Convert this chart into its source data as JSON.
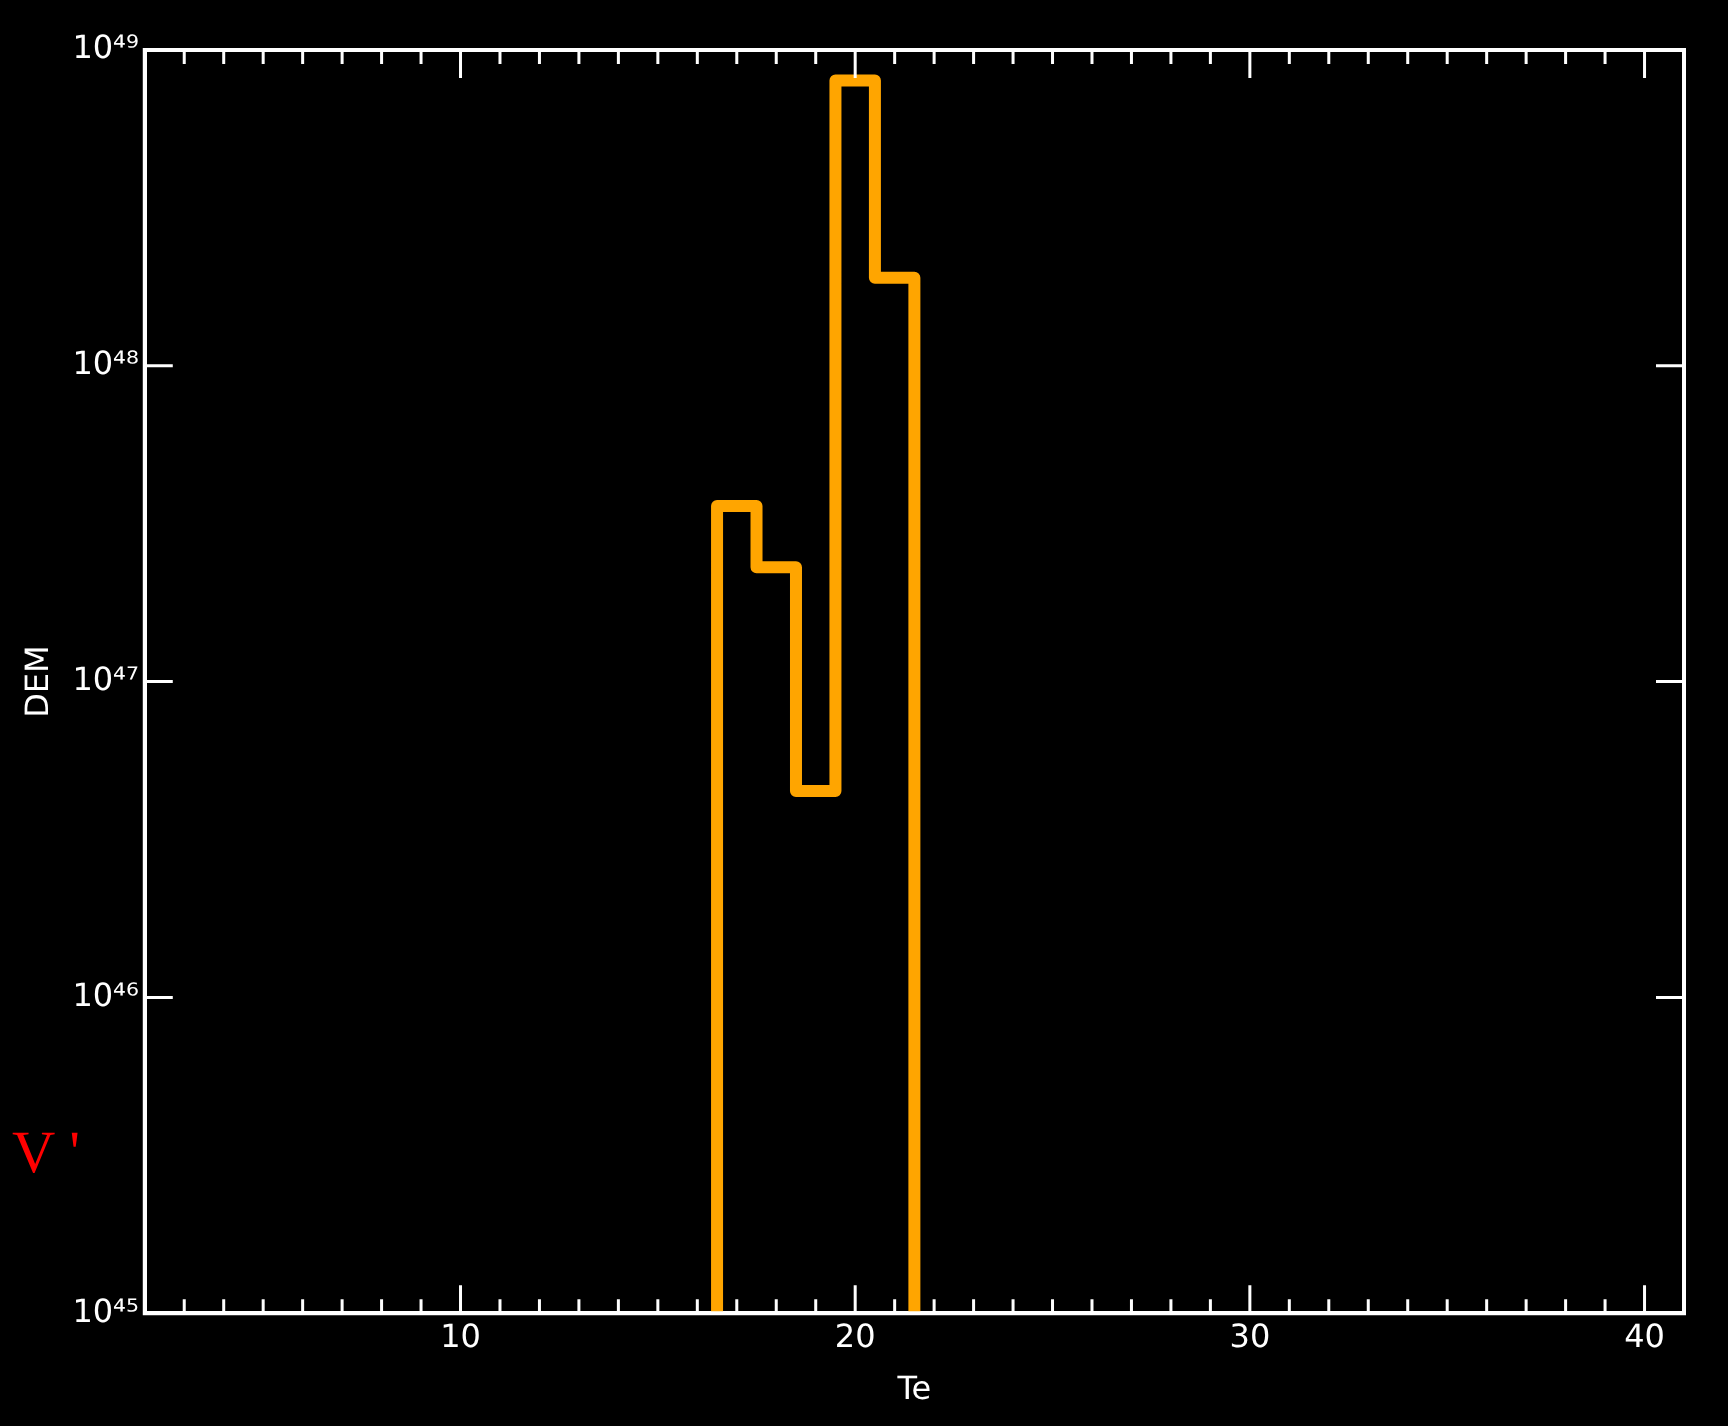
{
  "chart_data": {
    "type": "histogram",
    "xlabel": "Te",
    "ylabel": "DEM",
    "bins": [
      16.5,
      17.5,
      18.5,
      19.5,
      20.5,
      21.5
    ],
    "values": [
      3.6e+47,
      2.3e+47,
      4.5e+46,
      8e+48,
      1.9e+48
    ],
    "color": "#ffa500",
    "log": "y",
    "grid": false,
    "xlim": [
      2,
      41
    ],
    "xticks": [
      {
        "value": 3,
        "label": null
      },
      {
        "value": 4,
        "label": null
      },
      {
        "value": 5,
        "label": null
      },
      {
        "value": 6,
        "label": null
      },
      {
        "value": 7,
        "label": null
      },
      {
        "value": 8,
        "label": null
      },
      {
        "value": 9,
        "label": null
      },
      10,
      {
        "value": 11,
        "label": null
      },
      {
        "value": 12,
        "label": null
      },
      {
        "value": 13,
        "label": null
      },
      {
        "value": 14,
        "label": null
      },
      {
        "value": 15,
        "label": null
      },
      {
        "value": 16,
        "label": null
      },
      {
        "value": 17,
        "label": null
      },
      {
        "value": 18,
        "label": null
      },
      {
        "value": 19,
        "label": null
      },
      20,
      {
        "value": 21,
        "label": null
      },
      {
        "value": 22,
        "label": null
      },
      {
        "value": 23,
        "label": null
      },
      {
        "value": 24,
        "label": null
      },
      {
        "value": 25,
        "label": null
      },
      {
        "value": 26,
        "label": null
      },
      {
        "value": 27,
        "label": null
      },
      {
        "value": 28,
        "label": null
      },
      {
        "value": 29,
        "label": null
      },
      30,
      {
        "value": 31,
        "label": null
      },
      {
        "value": 32,
        "label": null
      },
      {
        "value": 33,
        "label": null
      },
      {
        "value": 34,
        "label": null
      },
      {
        "value": 35,
        "label": null
      },
      {
        "value": 36,
        "label": null
      },
      {
        "value": 37,
        "label": null
      },
      {
        "value": 38,
        "label": null
      },
      {
        "value": 39,
        "label": null
      },
      40,
      {
        "value": 41,
        "label": null
      }
    ],
    "ylim": [
      1e+45,
      1e+49
    ],
    "yticks": [
      {
        "value": 1e+45,
        "label": "10⁴⁵"
      },
      {
        "value": 1e+46,
        "label": "10⁴⁶"
      },
      {
        "value": 1e+47,
        "label": "10⁴⁷"
      },
      {
        "value": 1e+48,
        "label": "10⁴⁸"
      },
      {
        "value": 1e+49,
        "label": "10⁴⁹"
      }
    ],
    "annotations": [
      "V '"
    ]
  }
}
